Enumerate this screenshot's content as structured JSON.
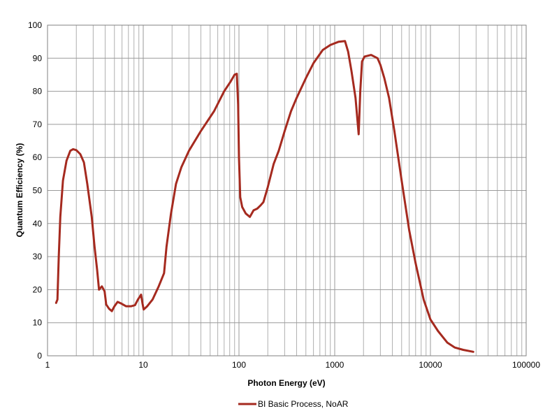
{
  "chart_data": {
    "type": "line",
    "xlabel": "Photon Energy (eV)",
    "ylabel": "Quantum Efficiency (%)",
    "xscale": "log",
    "xlim": [
      1,
      100000
    ],
    "ylim": [
      0,
      100
    ],
    "grid": true,
    "legend_position": "bottom",
    "x_ticks": [
      "1",
      "10",
      "100",
      "1000",
      "10000",
      "100000"
    ],
    "y_ticks": [
      "0",
      "10",
      "20",
      "30",
      "40",
      "50",
      "60",
      "70",
      "80",
      "90",
      "100"
    ],
    "series": [
      {
        "name": "BI Basic Process, NoAR",
        "color": "#a52a1f",
        "points": [
          [
            1.23,
            16
          ],
          [
            1.27,
            17
          ],
          [
            1.31,
            30
          ],
          [
            1.36,
            42
          ],
          [
            1.45,
            53
          ],
          [
            1.58,
            59
          ],
          [
            1.73,
            62
          ],
          [
            1.85,
            62.5
          ],
          [
            2.0,
            62.2
          ],
          [
            2.2,
            61
          ],
          [
            2.4,
            58.5
          ],
          [
            2.6,
            52
          ],
          [
            2.9,
            42
          ],
          [
            3.1,
            33
          ],
          [
            3.3,
            26
          ],
          [
            3.45,
            20
          ],
          [
            3.7,
            21
          ],
          [
            3.95,
            19.5
          ],
          [
            4.1,
            15.5
          ],
          [
            4.4,
            14.2
          ],
          [
            4.7,
            13.5
          ],
          [
            5.0,
            15
          ],
          [
            5.4,
            16.3
          ],
          [
            5.9,
            15.8
          ],
          [
            6.6,
            15
          ],
          [
            7.5,
            15
          ],
          [
            8.2,
            15.3
          ],
          [
            8.8,
            17
          ],
          [
            9.5,
            18.5
          ],
          [
            9.8,
            16
          ],
          [
            10.1,
            14
          ],
          [
            11.0,
            15
          ],
          [
            12.5,
            17
          ],
          [
            14.5,
            21
          ],
          [
            16.5,
            25
          ],
          [
            17.5,
            33
          ],
          [
            19.5,
            43
          ],
          [
            22,
            52
          ],
          [
            25,
            57
          ],
          [
            30,
            62
          ],
          [
            40,
            68
          ],
          [
            55,
            74
          ],
          [
            70,
            80
          ],
          [
            82,
            83
          ],
          [
            90,
            85
          ],
          [
            95,
            85.3
          ],
          [
            98,
            76
          ],
          [
            100,
            60
          ],
          [
            103,
            48
          ],
          [
            108,
            45
          ],
          [
            118,
            43
          ],
          [
            130,
            42
          ],
          [
            142,
            44
          ],
          [
            155,
            44.5
          ],
          [
            168,
            45.5
          ],
          [
            180,
            46.5
          ],
          [
            200,
            51
          ],
          [
            230,
            58
          ],
          [
            260,
            62
          ],
          [
            300,
            68
          ],
          [
            350,
            74
          ],
          [
            400,
            78
          ],
          [
            500,
            84
          ],
          [
            600,
            88.5
          ],
          [
            750,
            92.5
          ],
          [
            900,
            94
          ],
          [
            1100,
            95
          ],
          [
            1280,
            95.2
          ],
          [
            1380,
            92
          ],
          [
            1500,
            86
          ],
          [
            1650,
            78
          ],
          [
            1780,
            67
          ],
          [
            1850,
            80
          ],
          [
            1930,
            89
          ],
          [
            2050,
            90.5
          ],
          [
            2400,
            91
          ],
          [
            2800,
            90
          ],
          [
            3000,
            88
          ],
          [
            3300,
            84
          ],
          [
            3700,
            78
          ],
          [
            4200,
            68
          ],
          [
            5000,
            53
          ],
          [
            6000,
            38
          ],
          [
            7000,
            28
          ],
          [
            8500,
            17
          ],
          [
            10000,
            11
          ],
          [
            12000,
            7.5
          ],
          [
            15000,
            4
          ],
          [
            18000,
            2.5
          ],
          [
            22000,
            1.8
          ],
          [
            28000,
            1.2
          ]
        ]
      }
    ]
  }
}
